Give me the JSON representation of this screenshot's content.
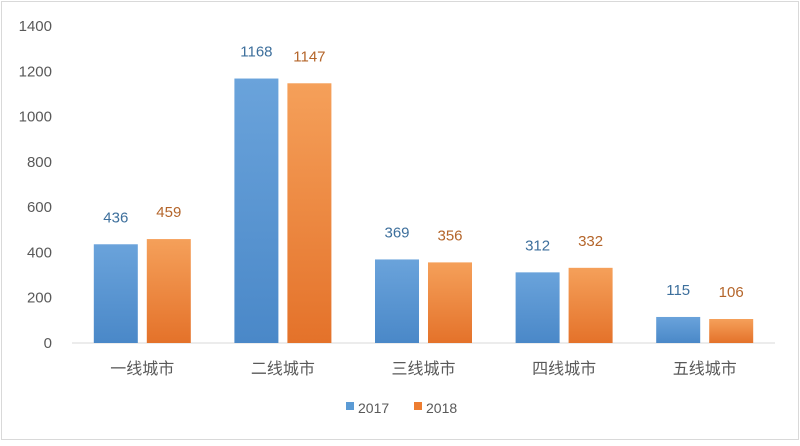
{
  "chart_data": {
    "type": "bar",
    "categories": [
      "一线城市",
      "二线城市",
      "三线城市",
      "四线城市",
      "五线城市"
    ],
    "series": [
      {
        "name": "2017",
        "values": [
          436,
          1168,
          369,
          312,
          115
        ],
        "color": "#6aa3db",
        "color_dark": "#4a88c8",
        "swatch_color": "#5b9bd5",
        "label_color": "#3d6f9c"
      },
      {
        "name": "2018",
        "values": [
          459,
          1147,
          356,
          332,
          106
        ],
        "color": "#f5a05a",
        "color_dark": "#e4722a",
        "swatch_color": "#ed7d31",
        "label_color": "#b4652a"
      }
    ],
    "ylim": [
      0,
      1400
    ],
    "yticks": [
      0,
      200,
      400,
      600,
      800,
      1000,
      1200,
      1400
    ],
    "grid": false,
    "legend": "bottom-center",
    "axis_text_color": "#595959",
    "axis_line_color": "#d9d9d9"
  }
}
